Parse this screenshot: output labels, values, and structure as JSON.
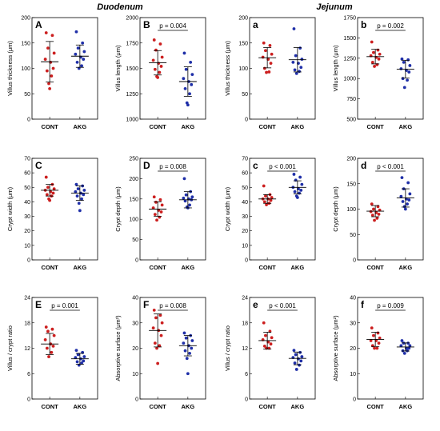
{
  "titles": {
    "left": "Duodenum",
    "right": "Jejunum"
  },
  "colors": {
    "cont": "#cc1f1f",
    "akg": "#1f2fa8"
  },
  "chart_data": [
    {
      "type": "scatter",
      "panel": "A",
      "ylabel": "Villus thickness (μm)",
      "categories": [
        "CONT",
        "AKG"
      ],
      "ylim": [
        0,
        200
      ],
      "yticks": [
        0,
        50,
        100,
        150,
        200
      ],
      "pvalue": "",
      "series": [
        {
          "name": "CONT",
          "points": [
            170,
            165,
            140,
            130,
            118,
            112,
            100,
            95,
            85,
            70,
            60
          ],
          "mean": 113,
          "sd": 40
        },
        {
          "name": "AKG",
          "points": [
            172,
            150,
            140,
            133,
            128,
            122,
            118,
            112,
            105,
            100
          ],
          "mean": 124,
          "sd": 22
        }
      ]
    },
    {
      "type": "scatter",
      "panel": "B",
      "ylabel": "Villus length (μm)",
      "categories": [
        "CONT",
        "AKG"
      ],
      "ylim": [
        1000,
        2000
      ],
      "yticks": [
        1000,
        1250,
        1500,
        1750,
        2000
      ],
      "pvalue": "p = 0.004",
      "series": [
        {
          "name": "CONT",
          "points": [
            1780,
            1740,
            1680,
            1610,
            1580,
            1550,
            1520,
            1490,
            1460,
            1420,
            1410
          ],
          "mean": 1555,
          "sd": 120
        },
        {
          "name": "AKG",
          "points": [
            1650,
            1560,
            1490,
            1440,
            1400,
            1370,
            1340,
            1300,
            1250,
            1160,
            1140
          ],
          "mean": 1370,
          "sd": 145
        }
      ]
    },
    {
      "type": "scatter",
      "panel": "a",
      "ylabel": "Villus thickness (μm)",
      "categories": [
        "CONT",
        "AKG"
      ],
      "ylim": [
        0,
        200
      ],
      "yticks": [
        0,
        50,
        100,
        150,
        200
      ],
      "pvalue": "",
      "series": [
        {
          "name": "CONT",
          "points": [
            150,
            145,
            135,
            128,
            122,
            118,
            110,
            100,
            93,
            92
          ],
          "mean": 121,
          "sd": 20
        },
        {
          "name": "AKG",
          "points": [
            178,
            140,
            125,
            118,
            112,
            110,
            102,
            97,
            94,
            90
          ],
          "mean": 117,
          "sd": 24
        }
      ]
    },
    {
      "type": "scatter",
      "panel": "b",
      "ylabel": "Villus length (μm)",
      "categories": [
        "CONT",
        "AKG"
      ],
      "ylim": [
        500,
        1750
      ],
      "yticks": [
        500,
        750,
        1000,
        1250,
        1500,
        1750
      ],
      "pvalue": "p = 0.002",
      "series": [
        {
          "name": "CONT",
          "points": [
            1450,
            1350,
            1320,
            1300,
            1280,
            1260,
            1240,
            1200,
            1170,
            1150
          ],
          "mean": 1270,
          "sd": 90
        },
        {
          "name": "AKG",
          "points": [
            1240,
            1230,
            1200,
            1160,
            1120,
            1100,
            1080,
            1000,
            980,
            890
          ],
          "mean": 1115,
          "sd": 110
        }
      ]
    },
    {
      "type": "scatter",
      "panel": "C",
      "ylabel": "Crypt width (μm)",
      "categories": [
        "CONT",
        "AKG"
      ],
      "ylim": [
        0,
        70
      ],
      "yticks": [
        0,
        10,
        20,
        30,
        40,
        50,
        60,
        70
      ],
      "pvalue": "",
      "series": [
        {
          "name": "CONT",
          "points": [
            57,
            52,
            50,
            49,
            48,
            47,
            46,
            45,
            44,
            42,
            41
          ],
          "mean": 48,
          "sd": 4
        },
        {
          "name": "AKG",
          "points": [
            52,
            51,
            49,
            48,
            47,
            46,
            45,
            44,
            42,
            39,
            34
          ],
          "mean": 46,
          "sd": 5
        }
      ]
    },
    {
      "type": "scatter",
      "panel": "D",
      "ylabel": "Crypt depth (μm)",
      "categories": [
        "CONT",
        "AKG"
      ],
      "ylim": [
        0,
        250
      ],
      "yticks": [
        0,
        50,
        100,
        150,
        200,
        250
      ],
      "pvalue": "p = 0.008",
      "series": [
        {
          "name": "CONT",
          "points": [
            155,
            148,
            142,
            135,
            128,
            122,
            118,
            112,
            105,
            98
          ],
          "mean": 125,
          "sd": 18
        },
        {
          "name": "AKG",
          "points": [
            200,
            168,
            160,
            155,
            152,
            150,
            148,
            145,
            135,
            130,
            128
          ],
          "mean": 148,
          "sd": 20
        }
      ]
    },
    {
      "type": "scatter",
      "panel": "c",
      "ylabel": "Crypt width (μm)",
      "categories": [
        "CONT",
        "AKG"
      ],
      "ylim": [
        0,
        70
      ],
      "yticks": [
        0,
        10,
        20,
        30,
        40,
        50,
        60,
        70
      ],
      "pvalue": "p < 0.001",
      "series": [
        {
          "name": "CONT",
          "points": [
            51,
            45,
            44,
            43,
            42,
            42,
            41,
            40,
            39,
            38
          ],
          "mean": 42,
          "sd": 3
        },
        {
          "name": "AKG",
          "points": [
            59,
            57,
            55,
            52,
            50,
            49,
            48,
            47,
            46,
            44,
            43
          ],
          "mean": 50,
          "sd": 4.5
        }
      ]
    },
    {
      "type": "scatter",
      "panel": "d",
      "ylabel": "Crypt depth (μm)",
      "categories": [
        "CONT",
        "AKG"
      ],
      "ylim": [
        0,
        200
      ],
      "yticks": [
        0,
        50,
        100,
        150,
        200
      ],
      "pvalue": "p < 0.001",
      "series": [
        {
          "name": "CONT",
          "points": [
            110,
            105,
            100,
            98,
            95,
            93,
            90,
            88,
            82,
            78
          ],
          "mean": 96,
          "sd": 11
        },
        {
          "name": "AKG",
          "points": [
            162,
            152,
            140,
            130,
            125,
            120,
            118,
            115,
            110,
            105,
            100
          ],
          "mean": 122,
          "sd": 18
        }
      ]
    },
    {
      "type": "scatter",
      "panel": "E",
      "ylabel": "Villus / crypt ratio",
      "categories": [
        "CONT",
        "AKG"
      ],
      "ylim": [
        0,
        24
      ],
      "yticks": [
        0,
        6,
        12,
        18,
        24
      ],
      "pvalue": "p = 0.001",
      "series": [
        {
          "name": "CONT",
          "points": [
            17,
            16.5,
            16,
            15,
            14,
            13,
            12.5,
            12,
            11,
            10
          ],
          "mean": 13,
          "sd": 2.5
        },
        {
          "name": "AKG",
          "points": [
            11.5,
            11,
            10.5,
            10,
            9.8,
            9.5,
            9,
            8.8,
            8.5,
            8
          ],
          "mean": 9.5,
          "sd": 1.3
        }
      ]
    },
    {
      "type": "scatter",
      "panel": "F",
      "ylabel": "Absorptive surface (μm²)",
      "categories": [
        "CONT",
        "AKG"
      ],
      "ylim": [
        0,
        40
      ],
      "yticks": [
        0,
        10,
        20,
        30,
        40
      ],
      "pvalue": "p = 0.008",
      "series": [
        {
          "name": "CONT",
          "points": [
            35,
            33,
            32,
            30,
            28,
            27,
            25,
            22,
            21,
            20,
            14
          ],
          "mean": 27,
          "sd": 6.5
        },
        {
          "name": "AKG",
          "points": [
            26,
            25,
            24,
            23,
            22,
            21,
            20,
            19,
            18,
            16,
            10
          ],
          "mean": 21,
          "sd": 4
        }
      ]
    },
    {
      "type": "scatter",
      "panel": "e",
      "ylabel": "Villus / crypt ratio",
      "categories": [
        "CONT",
        "AKG"
      ],
      "ylim": [
        0,
        24
      ],
      "yticks": [
        0,
        6,
        12,
        18,
        24
      ],
      "pvalue": "p < 0.001",
      "series": [
        {
          "name": "CONT",
          "points": [
            18,
            16,
            15,
            14.5,
            14,
            13.5,
            13,
            12.5,
            12,
            12
          ],
          "mean": 13.8,
          "sd": 2
        },
        {
          "name": "AKG",
          "points": [
            11.5,
            11,
            10.5,
            10,
            9.8,
            9.5,
            9,
            8.5,
            8,
            7
          ],
          "mean": 9.6,
          "sd": 1.5
        }
      ]
    },
    {
      "type": "scatter",
      "panel": "f",
      "ylabel": "Absorptive surface (μm²)",
      "categories": [
        "CONT",
        "AKG"
      ],
      "ylim": [
        0,
        40
      ],
      "yticks": [
        0,
        10,
        20,
        30,
        40
      ],
      "pvalue": "p = 0.009",
      "series": [
        {
          "name": "CONT",
          "points": [
            28,
            26,
            25,
            24,
            23,
            23,
            22,
            21,
            20,
            20
          ],
          "mean": 23.5,
          "sd": 2.8
        },
        {
          "name": "AKG",
          "points": [
            23,
            22,
            22,
            21,
            21,
            20,
            20,
            19,
            19,
            18
          ],
          "mean": 20.5,
          "sd": 1.6
        }
      ]
    }
  ]
}
